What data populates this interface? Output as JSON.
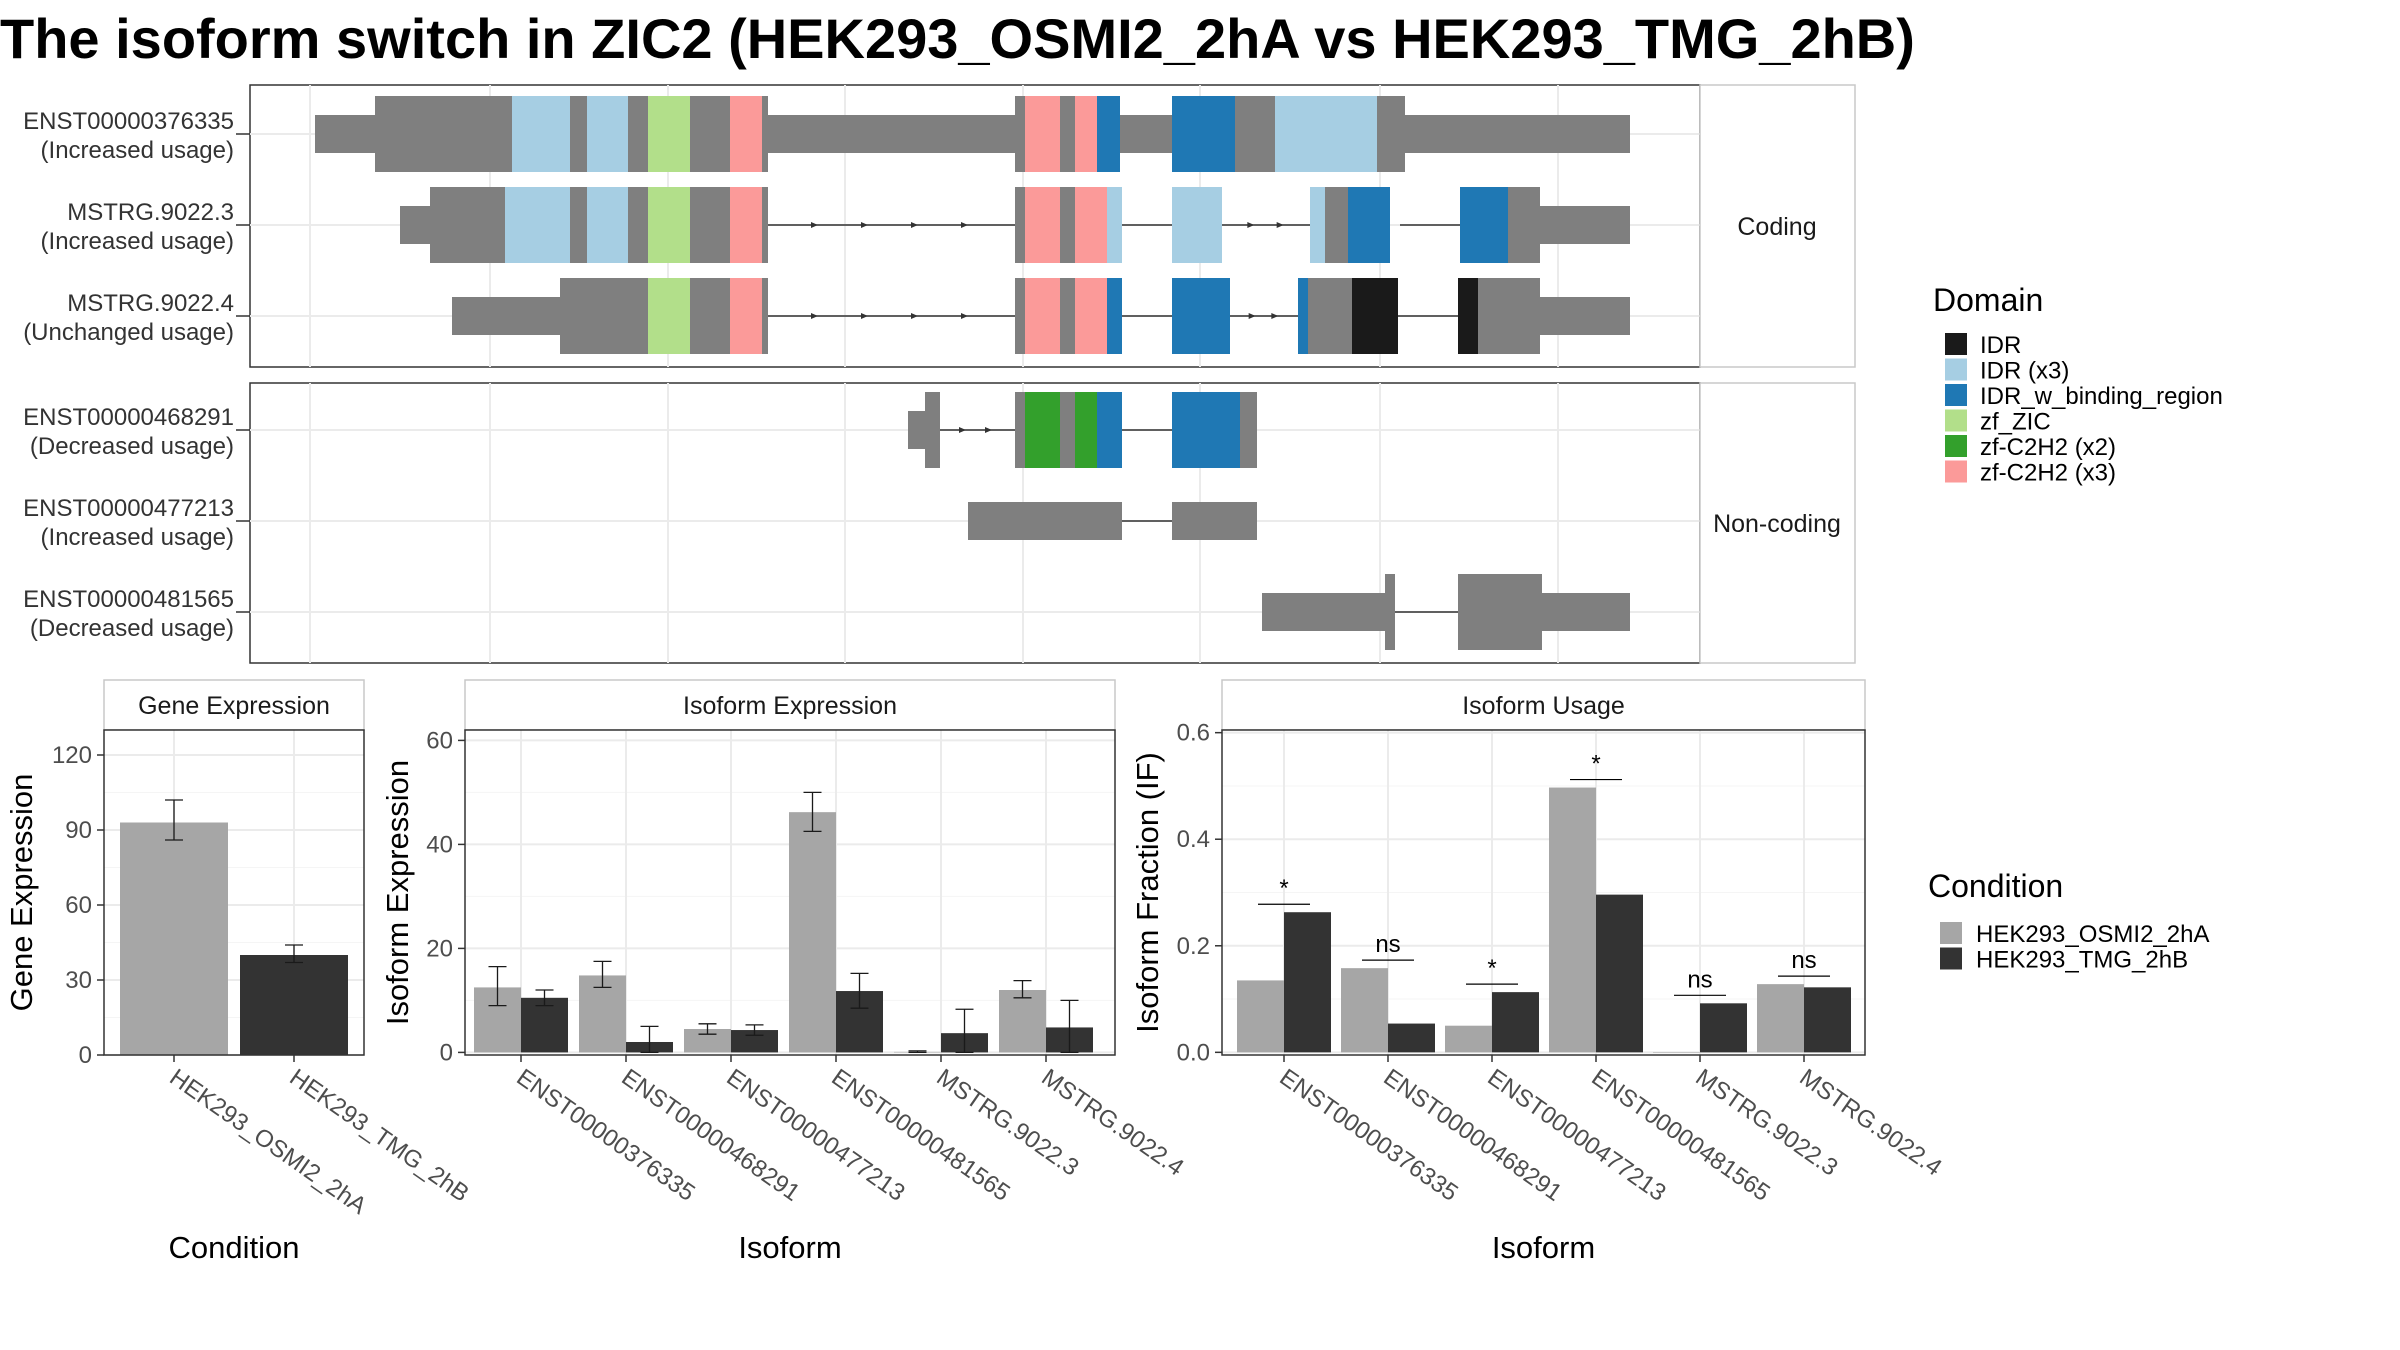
{
  "title": "The isoform switch in ZIC2 (HEK293_OSMI2_2hA vs HEK293_TMG_2hB)",
  "structure": {
    "type": "isoform-structure",
    "facets": [
      "Coding",
      "Non-coding"
    ],
    "isoforms": [
      {
        "id": "ENST00000376335",
        "usage": "(Increased usage)",
        "facet": 0
      },
      {
        "id": "MSTRG.9022.3",
        "usage": "(Increased usage)",
        "facet": 0
      },
      {
        "id": "MSTRG.9022.4",
        "usage": "(Unchanged usage)",
        "facet": 0
      },
      {
        "id": "ENST00000468291",
        "usage": "(Decreased usage)",
        "facet": 1
      },
      {
        "id": "ENST00000477213",
        "usage": "(Increased usage)",
        "facet": 1
      },
      {
        "id": "ENST00000481565",
        "usage": "(Decreased usage)",
        "facet": 1
      }
    ]
  },
  "domain_legend": {
    "title": "Domain",
    "items": [
      {
        "label": "IDR",
        "color": "#1a1a1a"
      },
      {
        "label": "IDR (x3)",
        "color": "#a6cee3"
      },
      {
        "label": "IDR_w_binding_region",
        "color": "#1f78b4"
      },
      {
        "label": "zf_ZIC",
        "color": "#b2df8a"
      },
      {
        "label": "zf-C2H2 (x2)",
        "color": "#33a02c"
      },
      {
        "label": "zf-C2H2 (x3)",
        "color": "#fb9a99"
      }
    ]
  },
  "condition_legend": {
    "title": "Condition",
    "items": [
      {
        "label": "HEK293_OSMI2_2hA",
        "color": "#a6a6a6"
      },
      {
        "label": "HEK293_TMG_2hB",
        "color": "#333333"
      }
    ]
  },
  "chart_data": [
    {
      "type": "bar",
      "title": "Gene Expression",
      "xlabel": "Condition",
      "ylabel": "Gene Expression",
      "ylim": [
        0,
        130
      ],
      "yticks": [
        "0",
        "30",
        "60",
        "90",
        "120"
      ],
      "categories": [
        "HEK293_OSMI2_2hA",
        "HEK293_TMG_2hB"
      ],
      "values": [
        93,
        40
      ],
      "errors": [
        [
          86,
          102
        ],
        [
          37,
          44
        ]
      ]
    },
    {
      "type": "bar",
      "title": "Isoform Expression",
      "xlabel": "Isoform",
      "ylabel": "Isoform Expression",
      "ylim": [
        -0.5,
        62
      ],
      "yticks": [
        "0",
        "20",
        "40",
        "60"
      ],
      "categories": [
        "ENST00000376335",
        "ENST00000468291",
        "ENST00000477213",
        "ENST00000481565",
        "MSTRG.9022.3",
        "MSTRG.9022.4"
      ],
      "series": [
        {
          "name": "HEK293_OSMI2_2hA",
          "values": [
            12.5,
            14.8,
            4.5,
            46.2,
            0.1,
            12.0
          ],
          "errors": [
            [
              9,
              16.5
            ],
            [
              12.5,
              17.5
            ],
            [
              3.5,
              5.5
            ],
            [
              42.5,
              50
            ],
            [
              0,
              0.3
            ],
            [
              10.5,
              13.8
            ]
          ]
        },
        {
          "name": "HEK293_TMG_2hB",
          "values": [
            10.5,
            2.0,
            4.3,
            11.8,
            3.7,
            4.8
          ],
          "errors": [
            [
              9,
              12
            ],
            [
              0,
              5
            ],
            [
              3.3,
              5.3
            ],
            [
              8.5,
              15.2
            ],
            [
              0,
              8.3
            ],
            [
              0,
              10
            ]
          ]
        }
      ]
    },
    {
      "type": "bar",
      "title": "Isoform Usage",
      "xlabel": "Isoform",
      "ylabel": "Isoform Fraction (IF)",
      "ylim": [
        -0.005,
        0.605
      ],
      "yticks": [
        "0.0",
        "0.2",
        "0.4",
        "0.6"
      ],
      "categories": [
        "ENST00000376335",
        "ENST00000468291",
        "ENST00000477213",
        "ENST00000481565",
        "MSTRG.9022.3",
        "MSTRG.9022.4"
      ],
      "series": [
        {
          "name": "HEK293_OSMI2_2hA",
          "values": [
            0.135,
            0.158,
            0.05,
            0.497,
            0.0,
            0.128
          ]
        },
        {
          "name": "HEK293_TMG_2hB",
          "values": [
            0.263,
            0.054,
            0.113,
            0.296,
            0.092,
            0.122
          ]
        }
      ],
      "significance": [
        "*",
        "ns",
        "*",
        "*",
        "ns",
        "ns"
      ]
    }
  ]
}
